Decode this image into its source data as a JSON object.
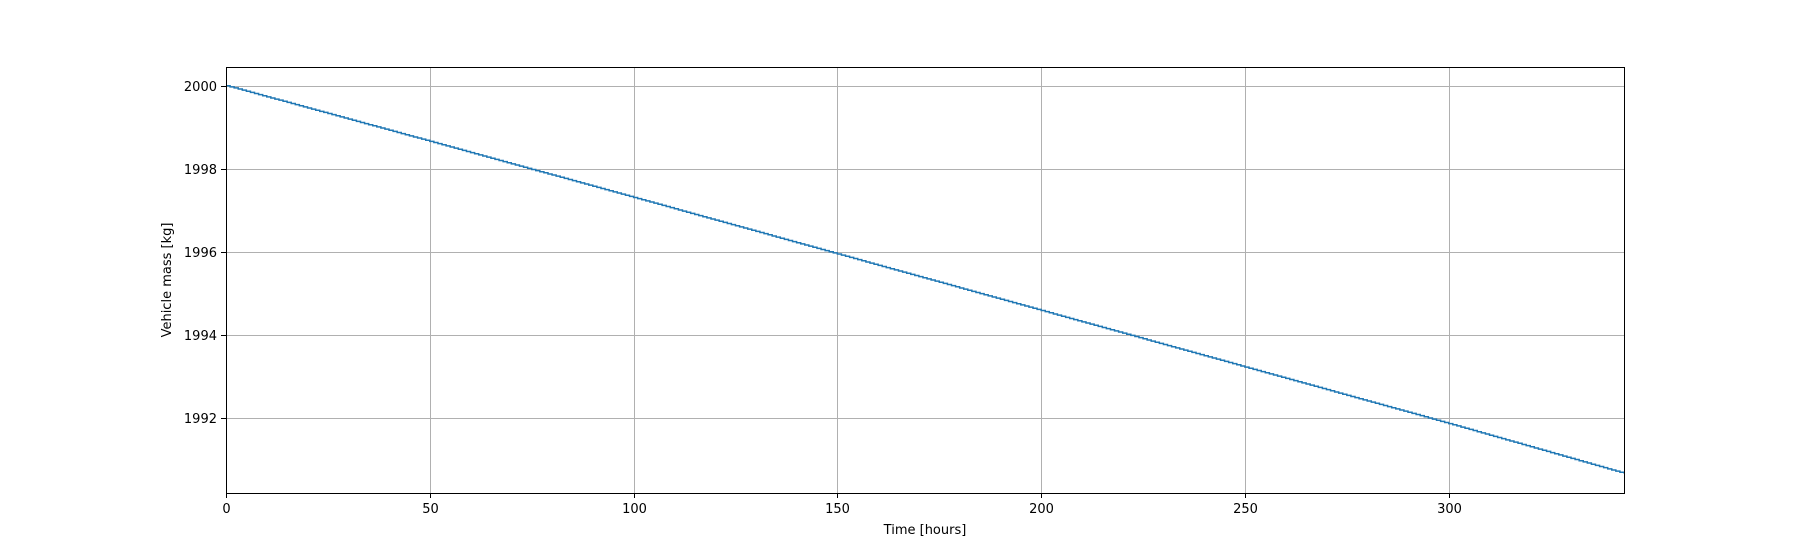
{
  "chart_data": {
    "type": "line",
    "title": "",
    "xlabel": "Time [hours]",
    "ylabel": "Vehicle mass [kg]",
    "xlim": [
      0,
      343
    ],
    "ylim": [
      1990.2,
      2000.45
    ],
    "x_ticks": [
      0,
      50,
      100,
      150,
      200,
      250,
      300
    ],
    "y_ticks": [
      1992,
      1994,
      1996,
      1998,
      2000
    ],
    "grid": true,
    "series": [
      {
        "color": "#1f77b4",
        "step": true,
        "step_hours": 1,
        "x": [
          0,
          50,
          100,
          150,
          200,
          250,
          300,
          343
        ],
        "y": [
          2000.0,
          1998.66,
          1997.31,
          1995.95,
          1994.59,
          1993.23,
          1991.87,
          1990.67
        ]
      }
    ]
  }
}
